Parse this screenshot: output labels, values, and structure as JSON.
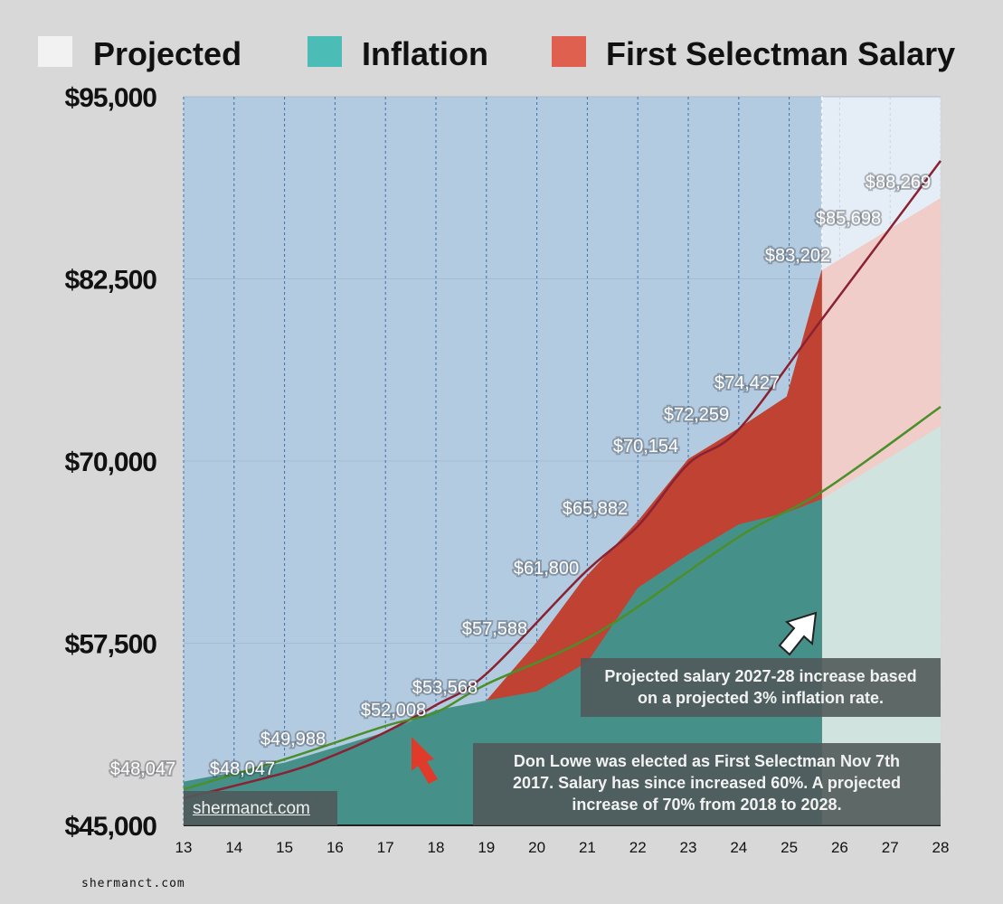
{
  "chart_data": {
    "type": "area",
    "legend": {
      "placement": "top",
      "items": [
        {
          "name": "Projected",
          "color": "#f2f2f2"
        },
        {
          "name": "Inflation",
          "color": "#4bbdb6"
        },
        {
          "name": "First Selectman Salary",
          "color": "#e06050"
        }
      ]
    },
    "xlim": [
      13,
      28
    ],
    "ylim": [
      45000,
      95000
    ],
    "x_ticks": [
      "13",
      "14",
      "15",
      "16",
      "17",
      "18",
      "19",
      "20",
      "21",
      "22",
      "23",
      "24",
      "25",
      "26",
      "27",
      "28"
    ],
    "y_ticks": [
      {
        "value": 45000,
        "label": "$45,000"
      },
      {
        "value": 57500,
        "label": "$57,500"
      },
      {
        "value": 70000,
        "label": "$70,000"
      },
      {
        "value": 82500,
        "label": "$82,500"
      },
      {
        "value": 95000,
        "label": "$95,000"
      }
    ],
    "grid": "vertical dotted",
    "projected_from": 25.65,
    "salary_area": {
      "x": [
        19,
        20,
        20.9,
        22,
        23,
        24,
        24.95,
        25.65
      ],
      "y": [
        53570,
        57590,
        61800,
        65880,
        70150,
        72260,
        74430,
        83200
      ]
    },
    "salary_projected_area": {
      "x": [
        25.65,
        28
      ],
      "y": [
        83100,
        88050
      ]
    },
    "inflation_area": {
      "x": [
        13,
        15,
        17,
        18,
        19,
        20,
        21,
        22,
        23,
        24,
        24.95,
        25.65
      ],
      "y": [
        48000,
        49300,
        51400,
        52900,
        53570,
        54200,
        56200,
        61300,
        63600,
        65650,
        66460,
        67400
      ]
    },
    "inflation_projected_area": {
      "x": [
        25.65,
        28
      ],
      "y": [
        67400,
        72400
      ]
    },
    "salary_trend_line": {
      "color": "#8b2232",
      "x": [
        13,
        15,
        16,
        17,
        18,
        19,
        20.9,
        22,
        23,
        24,
        25.65,
        28
      ],
      "y": [
        46860,
        48600,
        49840,
        51400,
        53250,
        55400,
        62180,
        65530,
        69800,
        72170,
        79740,
        90600
      ]
    },
    "inflation_trend_line": {
      "color": "#4a8f2a",
      "x": [
        13,
        15,
        17,
        18,
        19,
        21.2,
        24,
        25.65,
        28
      ],
      "y": [
        47480,
        49530,
        51820,
        52750,
        54680,
        58210,
        64790,
        67900,
        73720
      ]
    },
    "data_labels": [
      "$48,047",
      "$48,047",
      "$49,988",
      "$52,008",
      "$53,568",
      "$57,588",
      "$61,800",
      "$65,882",
      "$70,154",
      "$72,259",
      "$74,427",
      "$83,202",
      "$85,698",
      "$88,269"
    ]
  },
  "annotations": {
    "projection_note": "Projected salary 2027-28 increase based on a projected 3% inflation rate.",
    "election_note": "Don Lowe was elected as First Selectman Nov 7th 2017. Salary has since increased 60%. A projected increase of 70% from 2018 to 2028.",
    "site_link": "shermanct.com",
    "footer": "shermanct.com"
  }
}
